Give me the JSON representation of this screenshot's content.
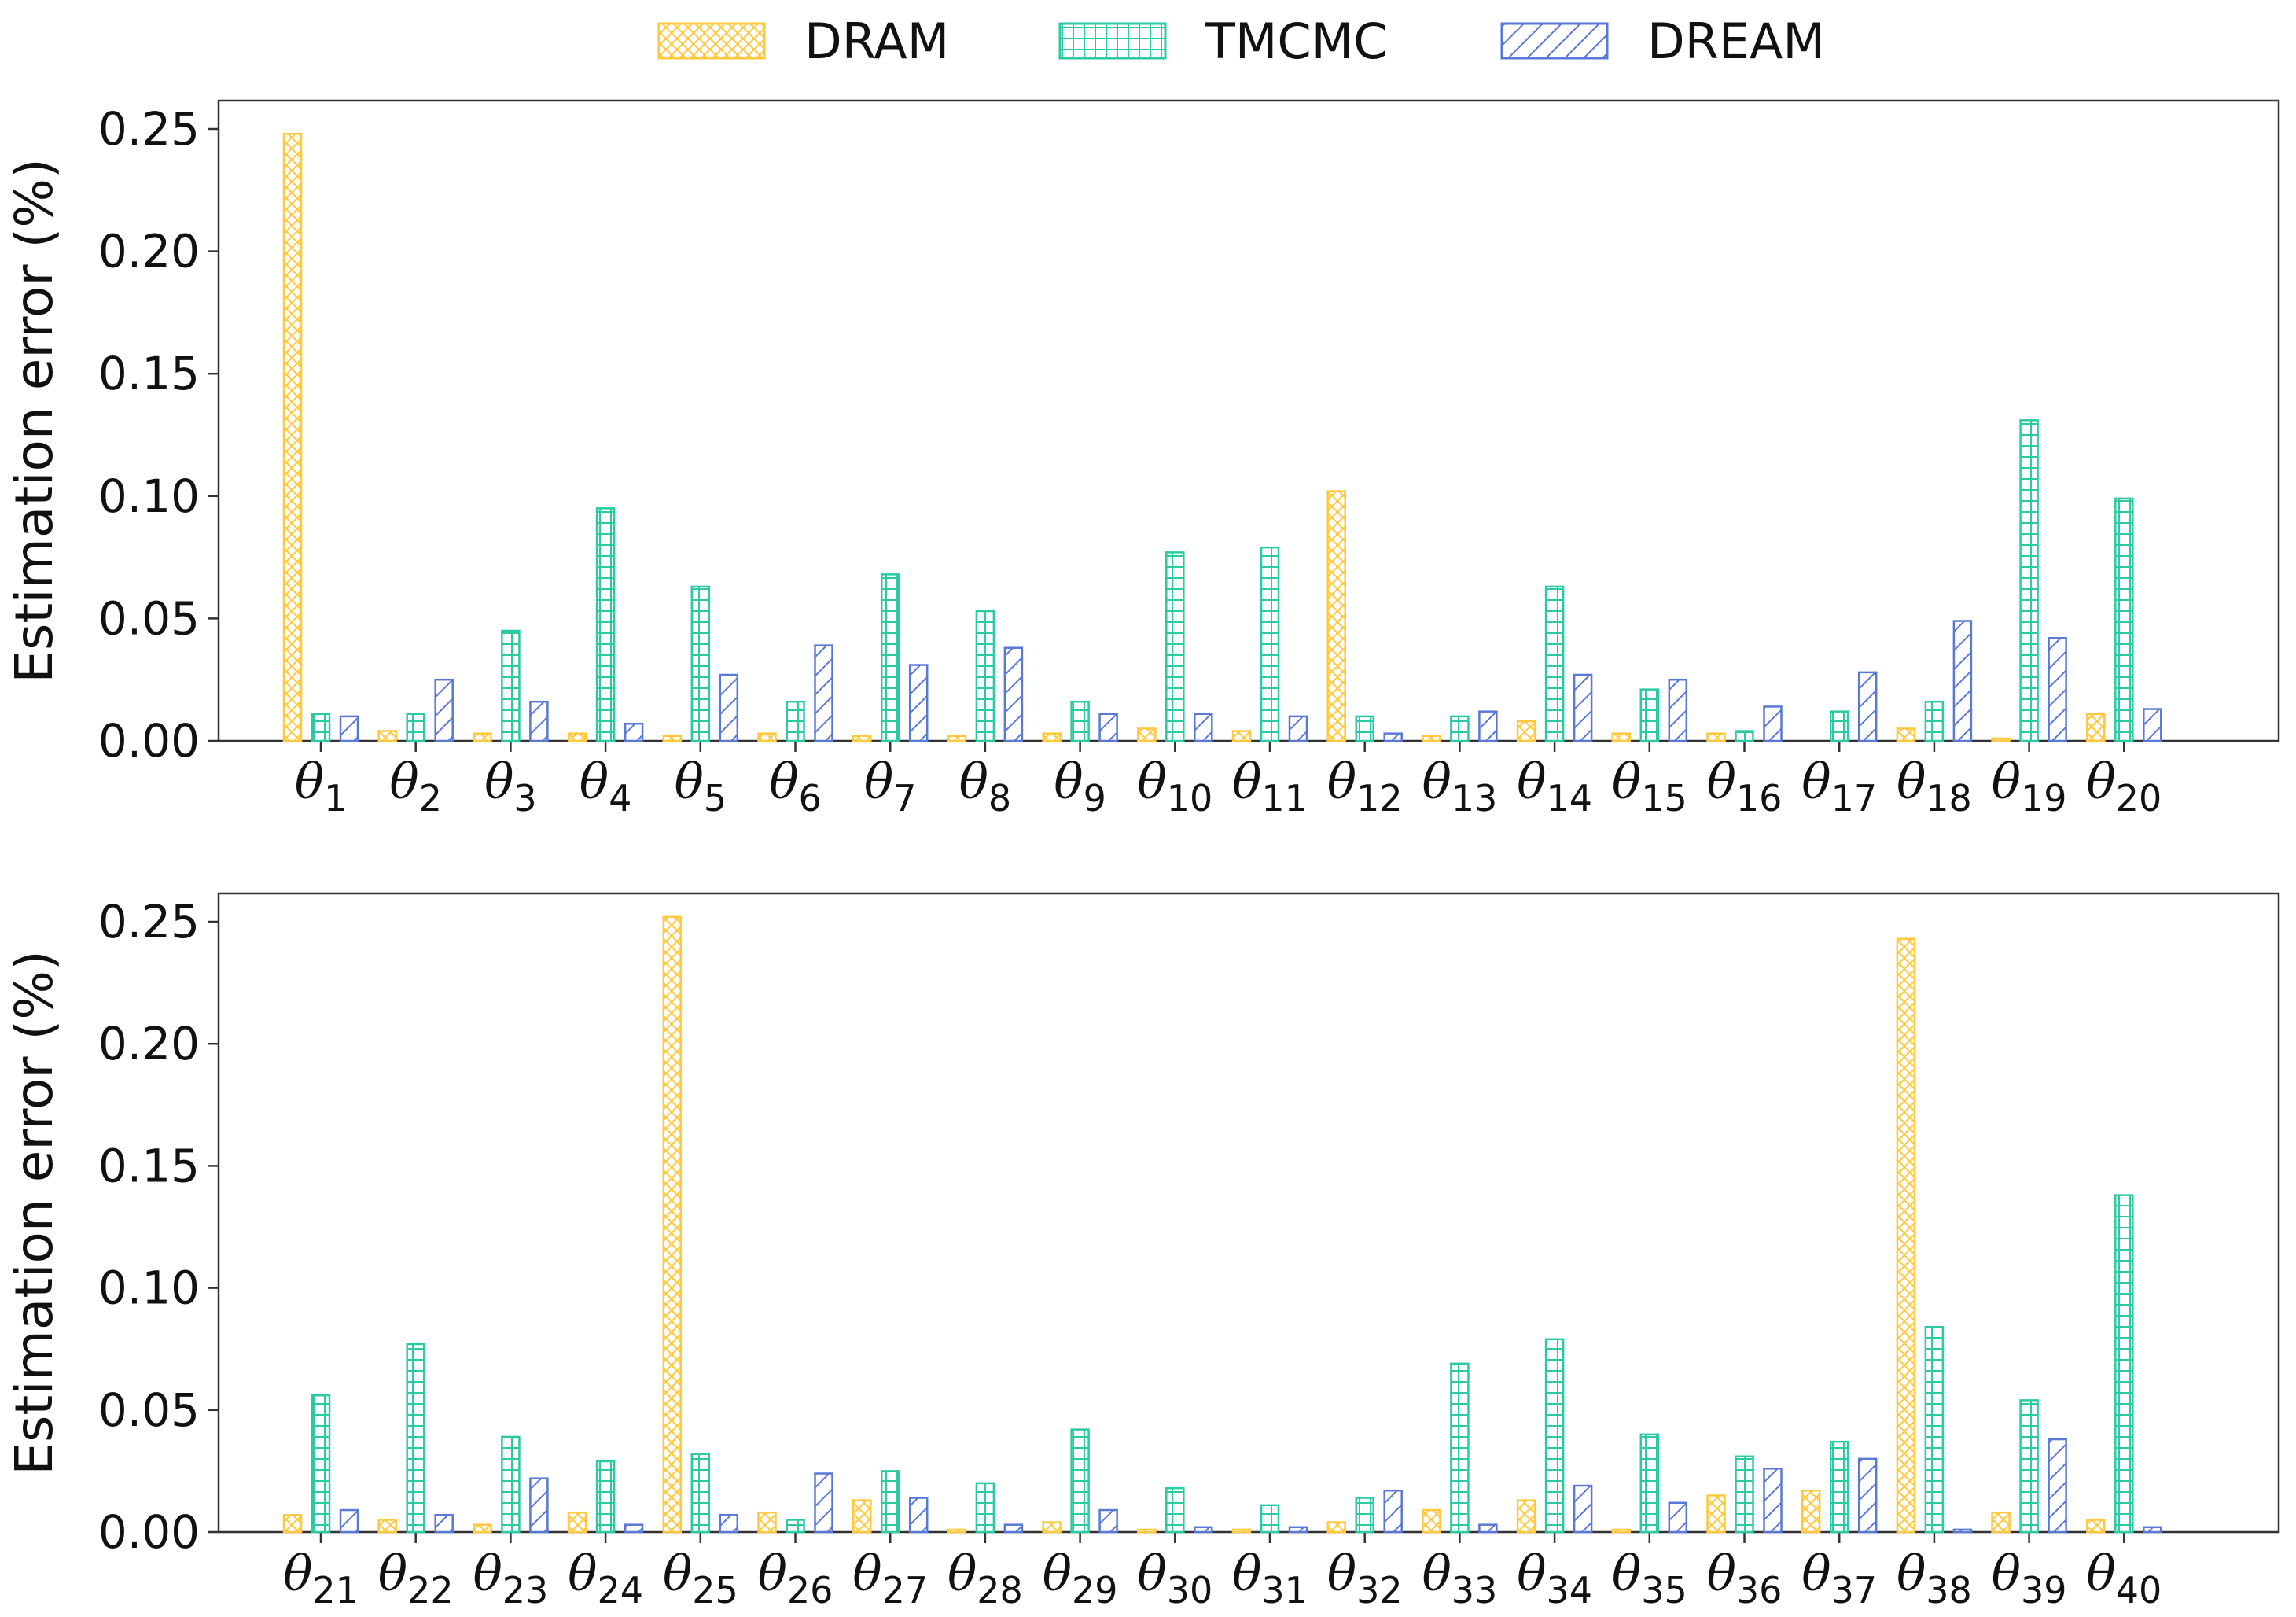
{
  "legend": [
    {
      "name": "DRAM",
      "color": "#FFC83D",
      "hatch": "cross"
    },
    {
      "name": "TMCMC",
      "color": "#2ACAA2",
      "hatch": "grid"
    },
    {
      "name": "DREAM",
      "color": "#5A78D6",
      "hatch": "diagonal"
    }
  ],
  "chart_data": [
    {
      "type": "bar",
      "title": "",
      "xlabel": "",
      "ylabel": "Estimation error (%)",
      "ylim": [
        0,
        0.26
      ],
      "yticks": [
        "0.00",
        "0.05",
        "0.10",
        "0.15",
        "0.20",
        "0.25"
      ],
      "grid": false,
      "legend_position": "top-center",
      "categories": [
        {
          "symbol": "θ",
          "sub": "1"
        },
        {
          "symbol": "θ",
          "sub": "2"
        },
        {
          "symbol": "θ",
          "sub": "3"
        },
        {
          "symbol": "θ",
          "sub": "4"
        },
        {
          "symbol": "θ",
          "sub": "5"
        },
        {
          "symbol": "θ",
          "sub": "6"
        },
        {
          "symbol": "θ",
          "sub": "7"
        },
        {
          "symbol": "θ",
          "sub": "8"
        },
        {
          "symbol": "θ",
          "sub": "9"
        },
        {
          "symbol": "θ",
          "sub": "10"
        },
        {
          "symbol": "θ",
          "sub": "11"
        },
        {
          "symbol": "θ",
          "sub": "12"
        },
        {
          "symbol": "θ",
          "sub": "13"
        },
        {
          "symbol": "θ",
          "sub": "14"
        },
        {
          "symbol": "θ",
          "sub": "15"
        },
        {
          "symbol": "θ",
          "sub": "16"
        },
        {
          "symbol": "θ",
          "sub": "17"
        },
        {
          "symbol": "θ",
          "sub": "18"
        },
        {
          "symbol": "θ",
          "sub": "19"
        },
        {
          "symbol": "θ",
          "sub": "20"
        }
      ],
      "series": [
        {
          "name": "DRAM",
          "values": [
            0.248,
            0.004,
            0.003,
            0.003,
            0.002,
            0.003,
            0.002,
            0.002,
            0.003,
            0.005,
            0.004,
            0.102,
            0.002,
            0.008,
            0.003,
            0.003,
            0.0,
            0.005,
            0.001,
            0.011
          ]
        },
        {
          "name": "TMCMC",
          "values": [
            0.011,
            0.011,
            0.045,
            0.095,
            0.063,
            0.016,
            0.068,
            0.053,
            0.016,
            0.077,
            0.079,
            0.01,
            0.01,
            0.063,
            0.021,
            0.004,
            0.012,
            0.016,
            0.131,
            0.099
          ]
        },
        {
          "name": "DREAM",
          "values": [
            0.01,
            0.025,
            0.016,
            0.007,
            0.027,
            0.039,
            0.031,
            0.038,
            0.011,
            0.011,
            0.01,
            0.003,
            0.012,
            0.027,
            0.025,
            0.014,
            0.028,
            0.049,
            0.042,
            0.013
          ]
        }
      ]
    },
    {
      "type": "bar",
      "title": "",
      "xlabel": "",
      "ylabel": "Estimation error (%)",
      "ylim": [
        0,
        0.26
      ],
      "yticks": [
        "0.00",
        "0.05",
        "0.10",
        "0.15",
        "0.20",
        "0.25"
      ],
      "grid": false,
      "categories": [
        {
          "symbol": "θ",
          "sub": "21"
        },
        {
          "symbol": "θ",
          "sub": "22"
        },
        {
          "symbol": "θ",
          "sub": "23"
        },
        {
          "symbol": "θ",
          "sub": "24"
        },
        {
          "symbol": "θ",
          "sub": "25"
        },
        {
          "symbol": "θ",
          "sub": "26"
        },
        {
          "symbol": "θ",
          "sub": "27"
        },
        {
          "symbol": "θ",
          "sub": "28"
        },
        {
          "symbol": "θ",
          "sub": "29"
        },
        {
          "symbol": "θ",
          "sub": "30"
        },
        {
          "symbol": "θ",
          "sub": "31"
        },
        {
          "symbol": "θ",
          "sub": "32"
        },
        {
          "symbol": "θ",
          "sub": "33"
        },
        {
          "symbol": "θ",
          "sub": "34"
        },
        {
          "symbol": "θ",
          "sub": "35"
        },
        {
          "symbol": "θ",
          "sub": "36"
        },
        {
          "symbol": "θ",
          "sub": "37"
        },
        {
          "symbol": "θ",
          "sub": "38"
        },
        {
          "symbol": "θ",
          "sub": "39"
        },
        {
          "symbol": "θ",
          "sub": "40"
        }
      ],
      "series": [
        {
          "name": "DRAM",
          "values": [
            0.007,
            0.005,
            0.003,
            0.008,
            0.252,
            0.008,
            0.013,
            0.001,
            0.004,
            0.001,
            0.001,
            0.004,
            0.009,
            0.013,
            0.001,
            0.015,
            0.017,
            0.243,
            0.008,
            0.005
          ]
        },
        {
          "name": "TMCMC",
          "values": [
            0.056,
            0.077,
            0.039,
            0.029,
            0.032,
            0.005,
            0.025,
            0.02,
            0.042,
            0.018,
            0.011,
            0.014,
            0.069,
            0.079,
            0.04,
            0.031,
            0.037,
            0.084,
            0.054,
            0.138
          ]
        },
        {
          "name": "DREAM",
          "values": [
            0.009,
            0.007,
            0.022,
            0.003,
            0.007,
            0.024,
            0.014,
            0.003,
            0.009,
            0.002,
            0.002,
            0.017,
            0.003,
            0.019,
            0.012,
            0.026,
            0.03,
            0.001,
            0.038,
            0.002
          ]
        }
      ]
    }
  ]
}
